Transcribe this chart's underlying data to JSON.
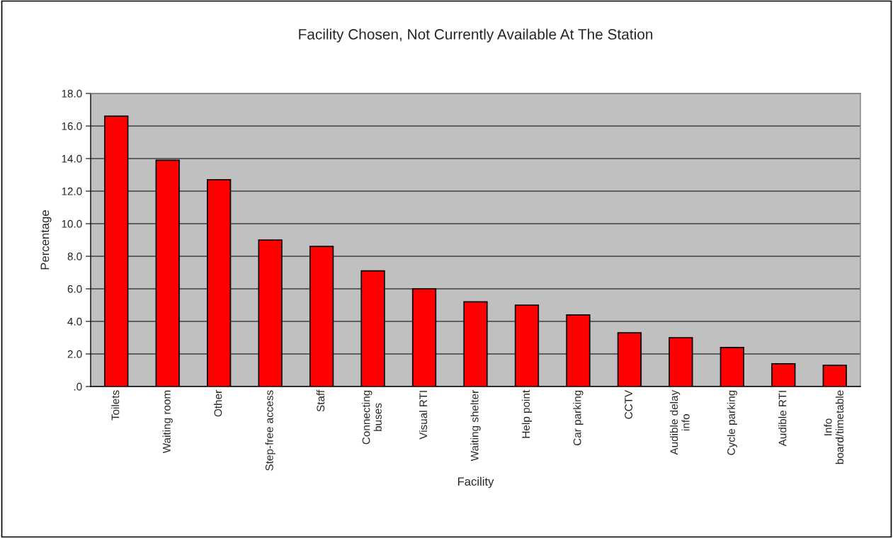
{
  "chart_data": {
    "type": "bar",
    "title": "Facility Chosen, Not Currently Available At The Station",
    "xlabel": "Facility",
    "ylabel": "Percentage",
    "categories": [
      "Toilets",
      "Waiting room",
      "Other",
      "Step-free access",
      "Staff",
      "Connecting\nbuses",
      "Visual RTI",
      "Waiting shelter",
      "Help point",
      "Car parking",
      "CCTV",
      "Audible delay\ninfo",
      "Cycle parking",
      "Audible RTI",
      "Info\nboard/timetable"
    ],
    "values": [
      16.6,
      13.9,
      12.7,
      9.0,
      8.6,
      7.1,
      6.0,
      5.2,
      5.0,
      4.4,
      3.3,
      3.0,
      2.4,
      1.4,
      1.3
    ],
    "color": "#ff0000",
    "ylim": [
      0,
      18
    ],
    "yticks": [
      {
        "value": 0,
        "label": ".0"
      },
      {
        "value": 2,
        "label": "2.0"
      },
      {
        "value": 4,
        "label": "4.0"
      },
      {
        "value": 6,
        "label": "6.0"
      },
      {
        "value": 8,
        "label": "8.0"
      },
      {
        "value": 10,
        "label": "10.0"
      },
      {
        "value": 12,
        "label": "12.0"
      },
      {
        "value": 14,
        "label": "14.0"
      },
      {
        "value": 16,
        "label": "16.0"
      },
      {
        "value": 18,
        "label": "18.0"
      }
    ],
    "grid": "y"
  }
}
